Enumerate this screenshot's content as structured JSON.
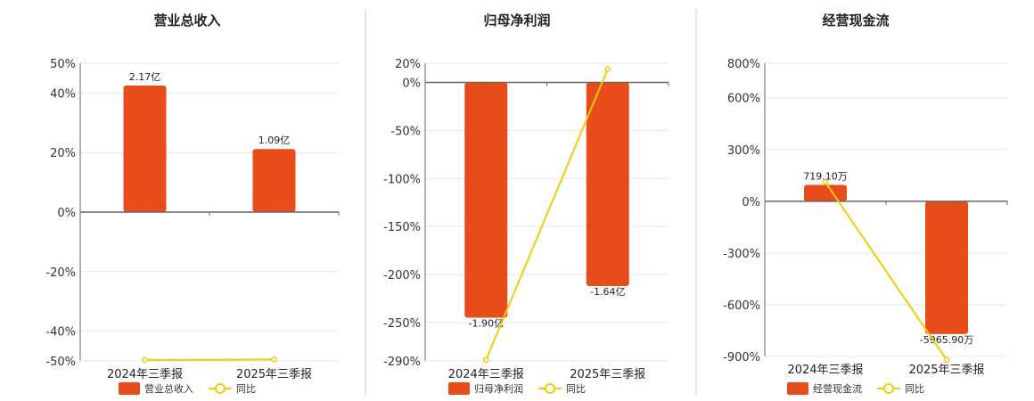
{
  "colors": {
    "bar": "#e84c1b",
    "line": "#f2cc0c",
    "grid": "#e6e6e6",
    "axis": "#666666",
    "divider": "#cfcfcf"
  },
  "chart_data": [
    {
      "type": "bar",
      "title": "营业总收入",
      "categories": [
        "2024年三季报",
        "2025年三季报"
      ],
      "ylim": [
        -50,
        50
      ],
      "yticks": [
        -50,
        -40,
        -20,
        0,
        20,
        40,
        50
      ],
      "yticklabels": [
        "-50%",
        "-40%",
        "-20%",
        "0%",
        "20%",
        "40%",
        "50%"
      ],
      "grid": true,
      "legend": "bottom",
      "series": [
        {
          "name": "营业总收入",
          "type": "bar",
          "values": [
            42.5,
            21.2
          ],
          "labels": [
            "2.17亿",
            "1.09亿"
          ]
        },
        {
          "name": "同比",
          "type": "line",
          "values": [
            -49.7,
            -49.5
          ]
        }
      ]
    },
    {
      "type": "bar",
      "title": "归母净利润",
      "categories": [
        "2024年三季报",
        "2025年三季报"
      ],
      "ylim": [
        -290,
        20
      ],
      "yticks": [
        -290,
        -250,
        -200,
        -150,
        -100,
        -50,
        0,
        20
      ],
      "yticklabels": [
        "-290%",
        "-250%",
        "-200%",
        "-150%",
        "-100%",
        "-50%",
        "0%",
        "20%"
      ],
      "grid": true,
      "legend": "bottom",
      "series": [
        {
          "name": "归母净利润",
          "type": "bar",
          "values": [
            -245,
            -212
          ],
          "labels": [
            "-1.90亿",
            "-1.64亿"
          ]
        },
        {
          "name": "同比",
          "type": "line",
          "values": [
            -289,
            14
          ]
        }
      ]
    },
    {
      "type": "bar",
      "title": "经营现金流",
      "categories": [
        "2024年三季报",
        "2025年三季报"
      ],
      "ylim": [
        -900,
        800
      ],
      "yticks": [
        -900,
        -600,
        -300,
        0,
        300,
        600,
        800
      ],
      "yticklabels": [
        "-900%",
        "-600%",
        "-300%",
        "0%",
        "300%",
        "600%",
        "800%"
      ],
      "grid": true,
      "legend": "bottom",
      "series": [
        {
          "name": "经营现金流",
          "type": "bar",
          "values": [
            95,
            -770
          ],
          "labels": [
            "719.10万",
            "-5965.90万"
          ]
        },
        {
          "name": "同比",
          "type": "line",
          "values": [
            110,
            -920
          ]
        }
      ]
    }
  ]
}
